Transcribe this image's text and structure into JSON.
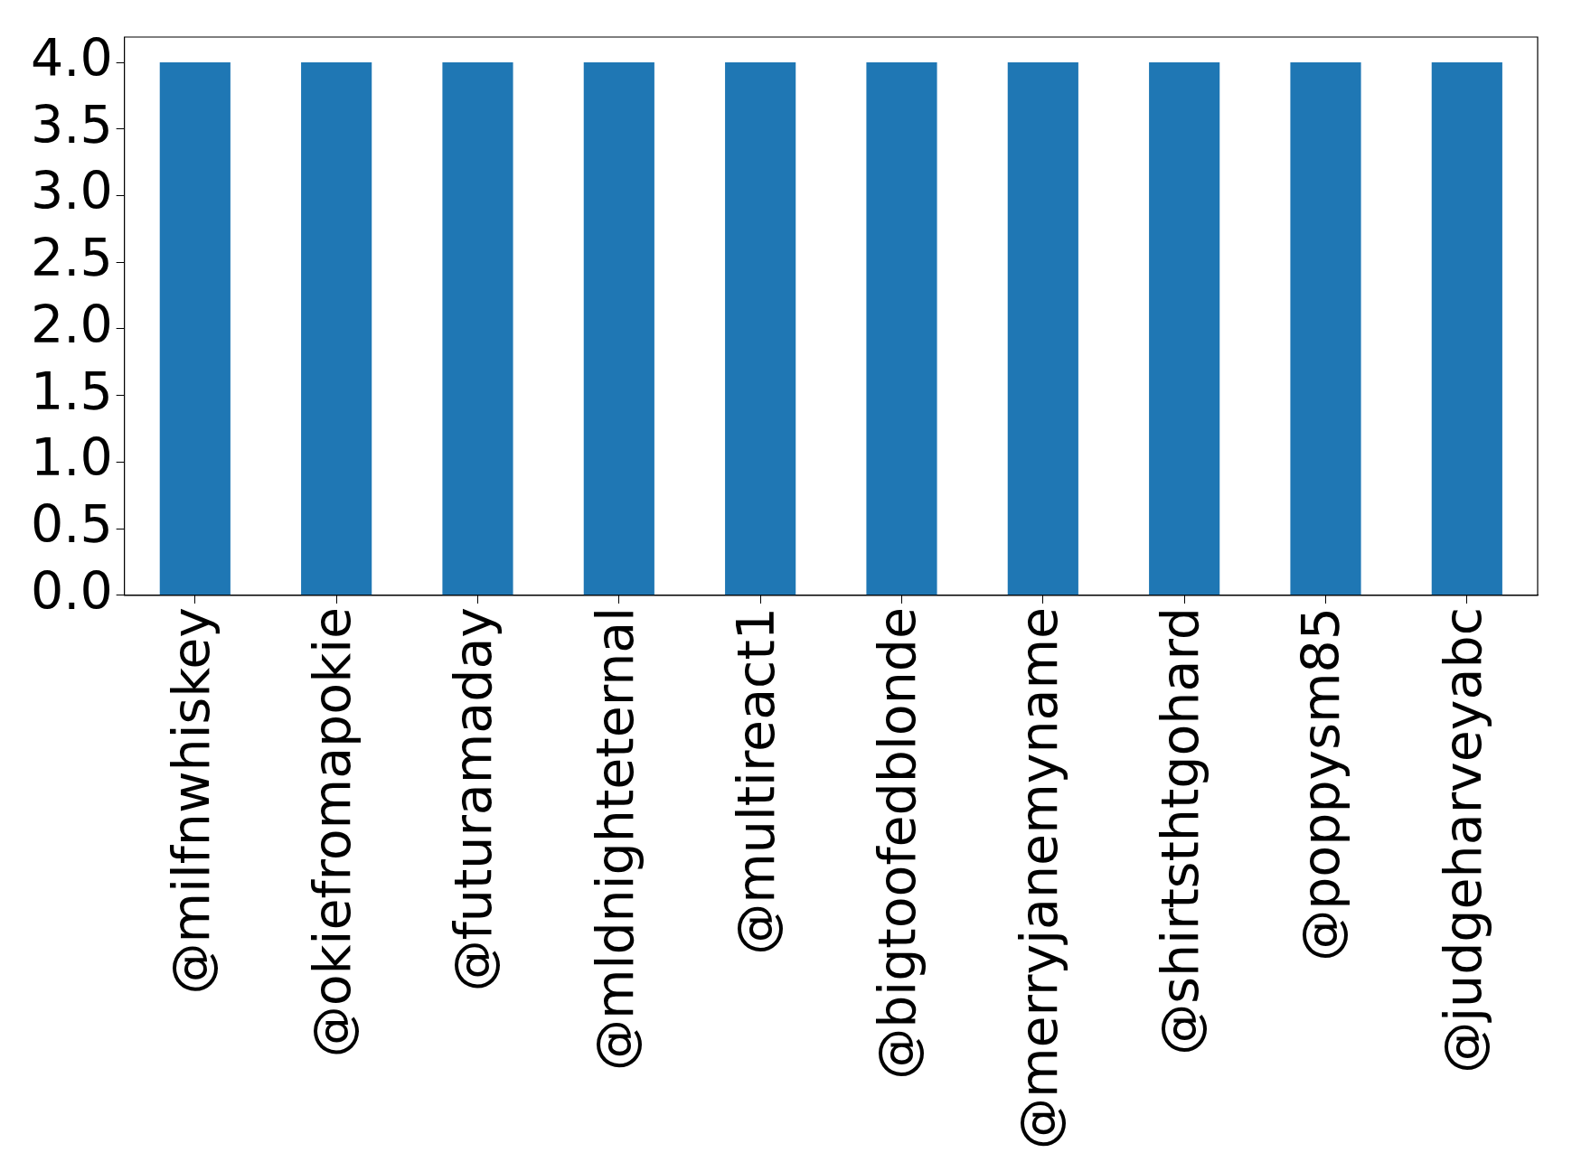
{
  "chart_data": {
    "type": "bar",
    "categories": [
      "@milfnwhiskey",
      "@okiefromapokie",
      "@futuramaday",
      "@mldnighteternal",
      "@multireact1",
      "@bigtoofedblonde",
      "@merryjanemyname",
      "@shirtsthtgohard",
      "@poppysm85",
      "@judgeharveyabc"
    ],
    "values": [
      4,
      4,
      4,
      4,
      4,
      4,
      4,
      4,
      4,
      4
    ],
    "color": "#1f77b4",
    "ylim": [
      0,
      4.19
    ],
    "yticks": [
      {
        "value": 0,
        "label": "0.0"
      },
      {
        "value": 0.5,
        "label": "0.5"
      },
      {
        "value": 1,
        "label": "1.0"
      },
      {
        "value": 1.5,
        "label": "1.5"
      },
      {
        "value": 2,
        "label": "2.0"
      },
      {
        "value": 2.5,
        "label": "2.5"
      },
      {
        "value": 3,
        "label": "3.0"
      },
      {
        "value": 3.5,
        "label": "3.5"
      },
      {
        "value": 4,
        "label": "4.0"
      }
    ],
    "grid": false,
    "legend": false
  }
}
